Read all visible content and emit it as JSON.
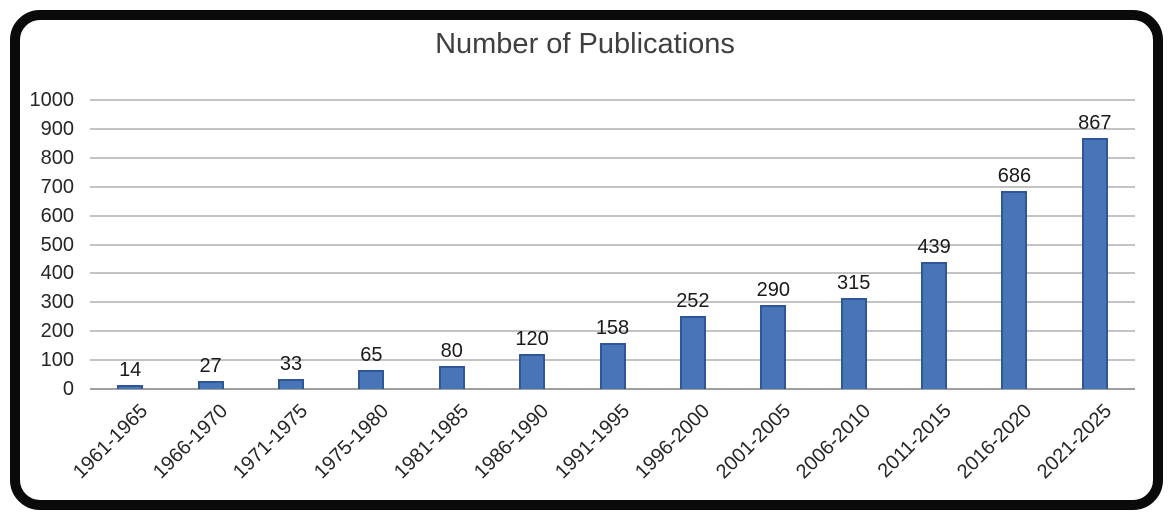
{
  "chart_data": {
    "type": "bar",
    "title": "Number of Publications",
    "categories": [
      "1961-1965",
      "1966-1970",
      "1971-1975",
      "1975-1980",
      "1981-1985",
      "1986-1990",
      "1991-1995",
      "1996-2000",
      "2001-2005",
      "2006-2010",
      "2011-2015",
      "2016-2020",
      "2021-2025"
    ],
    "values": [
      14,
      27,
      33,
      65,
      80,
      120,
      158,
      252,
      290,
      315,
      439,
      686,
      867
    ],
    "xlabel": "",
    "ylabel": "",
    "ylim": [
      0,
      1000
    ],
    "ytick_step": 100,
    "grid": "horizontal",
    "legend": "none",
    "data_labels": "above-bars",
    "category_label_rotation_deg": 45,
    "colors": {
      "bar_fill": "#4874B8",
      "bar_border": "#2F5796",
      "gridline": "#C3C3C3",
      "axis_line": "#9e9e9e",
      "title_text": "#3f3f3f",
      "tick_text": "#262626",
      "value_text": "#1a1a1a",
      "frame_border": "#0a0a0a",
      "background": "#ffffff"
    }
  }
}
